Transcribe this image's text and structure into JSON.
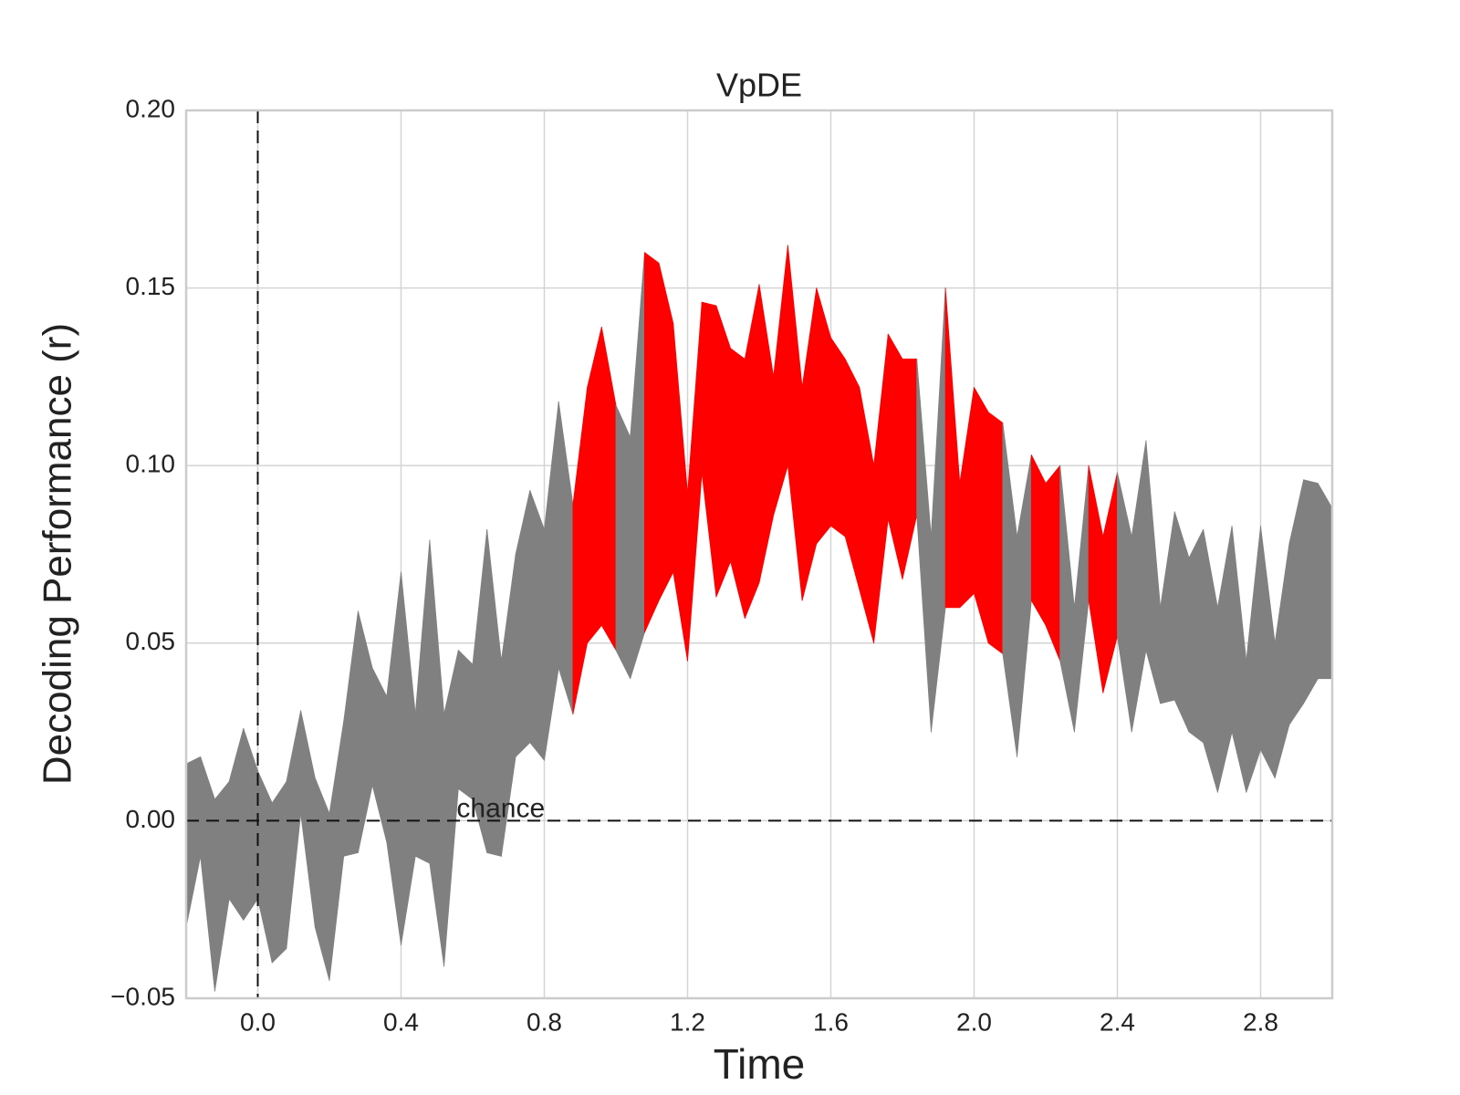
{
  "chart_data": {
    "type": "band",
    "title": "VpDE",
    "x_label": "Time",
    "y_label": "Decoding Performance (r)",
    "x": [
      -0.2,
      -0.16,
      -0.12,
      -0.08,
      -0.04,
      0,
      0.04,
      0.08,
      0.12,
      0.16,
      0.2,
      0.24,
      0.28,
      0.32,
      0.36,
      0.4,
      0.44,
      0.48,
      0.52,
      0.56,
      0.6,
      0.64,
      0.68,
      0.72,
      0.76,
      0.8,
      0.84,
      0.88,
      0.92,
      0.96,
      1,
      1.04,
      1.08,
      1.12,
      1.16,
      1.2,
      1.24,
      1.28,
      1.32,
      1.36,
      1.4,
      1.44,
      1.48,
      1.52,
      1.56,
      1.6,
      1.64,
      1.68,
      1.72,
      1.76,
      1.8,
      1.84,
      1.88,
      1.92,
      1.96,
      2,
      2.04,
      2.08,
      2.12,
      2.16,
      2.2,
      2.24,
      2.28,
      2.32,
      2.36,
      2.4,
      2.44,
      2.48,
      2.52,
      2.56,
      2.6,
      2.64,
      2.68,
      2.72,
      2.76,
      2.8,
      2.84,
      2.88,
      2.92,
      2.96,
      3
    ],
    "upper": [
      0.016,
      0.018,
      0.006,
      0.011,
      0.026,
      0.014,
      0.005,
      0.011,
      0.031,
      0.012,
      0.002,
      0.028,
      0.059,
      0.043,
      0.035,
      0.07,
      0.03,
      0.079,
      0.03,
      0.048,
      0.044,
      0.082,
      0.045,
      0.075,
      0.093,
      0.082,
      0.118,
      0.089,
      0.122,
      0.139,
      0.117,
      0.108,
      0.16,
      0.157,
      0.14,
      0.092,
      0.146,
      0.145,
      0.133,
      0.13,
      0.151,
      0.125,
      0.162,
      0.122,
      0.15,
      0.136,
      0.13,
      0.122,
      0.1,
      0.137,
      0.13,
      0.13,
      0.08,
      0.15,
      0.095,
      0.122,
      0.115,
      0.112,
      0.08,
      0.103,
      0.095,
      0.1,
      0.06,
      0.1,
      0.08,
      0.098,
      0.08,
      0.107,
      0.06,
      0.087,
      0.074,
      0.082,
      0.06,
      0.083,
      0.045,
      0.083,
      0.05,
      0.078,
      0.096,
      0.095,
      0.088
    ],
    "lower": [
      -0.03,
      -0.01,
      -0.048,
      -0.022,
      -0.028,
      -0.022,
      -0.04,
      -0.036,
      0.002,
      -0.03,
      -0.045,
      -0.01,
      -0.009,
      0.01,
      -0.006,
      -0.035,
      -0.01,
      -0.012,
      -0.041,
      0.009,
      0.006,
      -0.009,
      -0.01,
      0.018,
      0.022,
      0.017,
      0.043,
      0.03,
      0.05,
      0.055,
      0.048,
      0.04,
      0.053,
      0.062,
      0.07,
      0.045,
      0.098,
      0.063,
      0.073,
      0.057,
      0.067,
      0.086,
      0.1,
      0.062,
      0.078,
      0.083,
      0.08,
      0.065,
      0.05,
      0.085,
      0.068,
      0.086,
      0.025,
      0.06,
      0.06,
      0.064,
      0.05,
      0.047,
      0.018,
      0.062,
      0.055,
      0.045,
      0.025,
      0.062,
      0.036,
      0.052,
      0.025,
      0.048,
      0.033,
      0.034,
      0.025,
      0.022,
      0.008,
      0.025,
      0.008,
      0.02,
      0.012,
      0.027,
      0.033,
      0.04,
      0.04
    ],
    "significant": [
      false,
      false,
      false,
      false,
      false,
      false,
      false,
      false,
      false,
      false,
      false,
      false,
      false,
      false,
      false,
      false,
      false,
      false,
      false,
      false,
      false,
      false,
      false,
      false,
      false,
      false,
      false,
      true,
      true,
      true,
      true,
      false,
      true,
      true,
      true,
      true,
      true,
      true,
      true,
      true,
      true,
      true,
      true,
      true,
      true,
      true,
      true,
      true,
      true,
      true,
      true,
      true,
      false,
      true,
      true,
      true,
      true,
      true,
      false,
      true,
      true,
      true,
      false,
      true,
      true,
      true,
      false,
      false,
      false,
      false,
      false,
      false,
      false,
      false,
      false,
      false,
      false,
      false,
      false,
      false,
      false
    ],
    "color": "#808080",
    "significant_color": "#ff0000",
    "xlim": [
      -0.2,
      3.0
    ],
    "ylim": [
      -0.05,
      0.2
    ],
    "xticks": [
      {
        "value": 0,
        "label": "0.0"
      },
      0.4,
      0.8,
      1.2,
      1.6,
      {
        "value": 2,
        "label": "2.0"
      },
      2.4,
      2.8
    ],
    "yticks": [
      {
        "value": -0.05,
        "label": "−0.05"
      },
      {
        "value": 0,
        "label": "0.00"
      },
      {
        "value": 0.05,
        "label": "0.05"
      },
      {
        "value": 0.1,
        "label": "0.10"
      },
      {
        "value": 0.15,
        "label": "0.15"
      },
      {
        "value": 0.2,
        "label": "0.20"
      }
    ],
    "grid": true,
    "hline": {
      "y": 0,
      "label": "chance"
    },
    "vline": {
      "x": 0
    }
  }
}
